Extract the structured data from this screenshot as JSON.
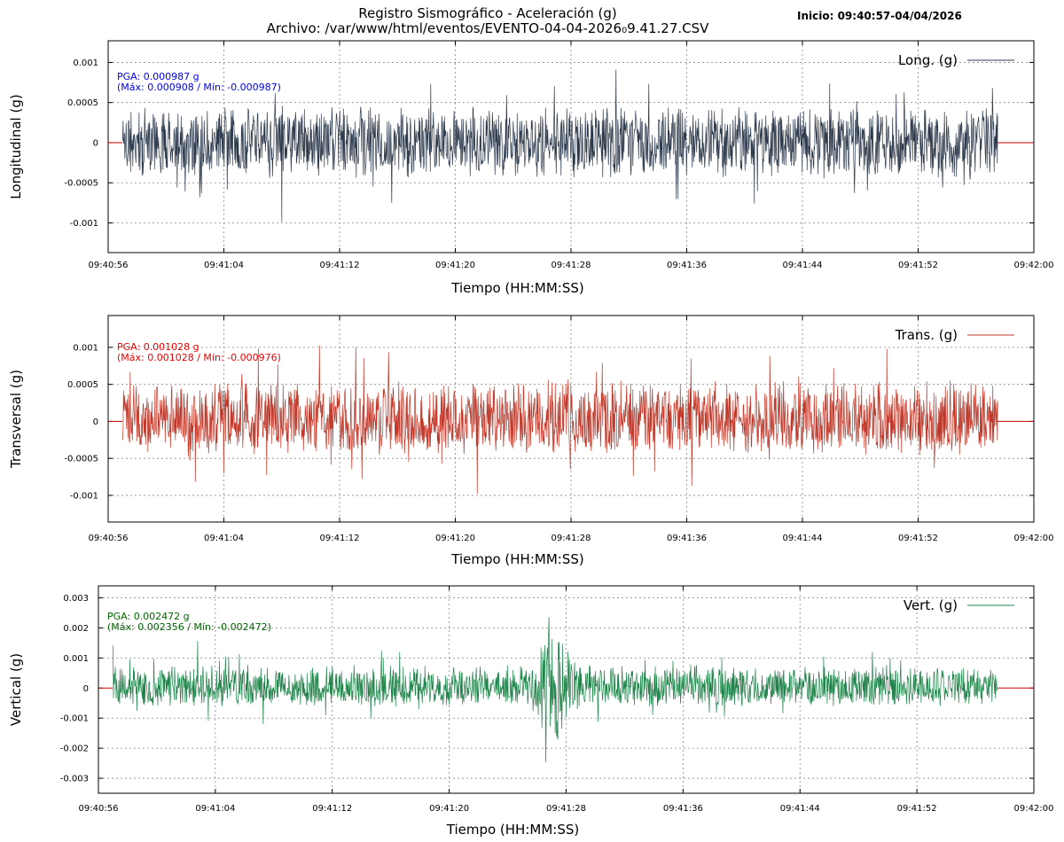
{
  "title": {
    "line1": "Registro Sismográfico - Aceleración (g)",
    "line2": "Archivo: /var/www/html/eventos/EVENTO-04-04-2026₀9.41.27.CSV",
    "inicio": "Inicio: 09:40:57-04/04/2026"
  },
  "colors": {
    "long": "#2d3a4c",
    "trans": "#c0392b",
    "vert": "#1e8449",
    "zero_line": "#cc0000",
    "grid": "#888888",
    "ann_long": "#0000ee",
    "ann_trans": "#ee0000",
    "ann_vert": "#006400"
  },
  "chart_data": [
    {
      "type": "line",
      "key": "long",
      "ylabel": "Longitudinal (g)",
      "xlabel": "Tiempo (HH:MM:SS)",
      "legend": "Long. (g)",
      "legend_position": "top-right",
      "grid": true,
      "x_range": [
        "09:40:56",
        "09:42:00"
      ],
      "x_ticks": [
        "09:40:56",
        "09:41:04",
        "09:41:12",
        "09:41:20",
        "09:41:28",
        "09:41:36",
        "09:41:44",
        "09:41:52",
        "09:42:00"
      ],
      "data_time_range": [
        "09:40:57",
        "09:41:57.5"
      ],
      "ylim": [
        -0.00137,
        0.00127
      ],
      "y_ticks": [
        -0.001,
        -0.0005,
        0,
        0.0005,
        0.001
      ],
      "y_tick_labels": [
        "-0.001",
        "-0.0005",
        "0",
        "0.0005",
        "0.001"
      ],
      "pga_text": "PGA: 0.000987 g",
      "maxmin_text": "(Máx: 0.000908 / Mín: -0.000987)",
      "max": 0.000908,
      "min": -0.000987,
      "typical_envelope": 0.00028,
      "seed": 11,
      "events": []
    },
    {
      "type": "line",
      "key": "trans",
      "ylabel": "Transversal (g)",
      "xlabel": "Tiempo (HH:MM:SS)",
      "legend": "Trans. (g)",
      "legend_position": "top-right",
      "grid": true,
      "x_range": [
        "09:40:56",
        "09:42:00"
      ],
      "x_ticks": [
        "09:40:56",
        "09:41:04",
        "09:41:12",
        "09:41:20",
        "09:41:28",
        "09:41:36",
        "09:41:44",
        "09:41:52",
        "09:42:00"
      ],
      "data_time_range": [
        "09:40:57",
        "09:41:57.5"
      ],
      "ylim": [
        -0.00136,
        0.00143
      ],
      "y_ticks": [
        -0.001,
        -0.0005,
        0,
        0.0005,
        0.001
      ],
      "y_tick_labels": [
        "-0.001",
        "-0.0005",
        "0",
        "0.0005",
        "0.001"
      ],
      "pga_text": "PGA: 0.001028 g",
      "maxmin_text": "(Máx: 0.001028 / Mín: -0.000976)",
      "max": 0.001028,
      "min": -0.000976,
      "typical_envelope": 0.0003,
      "seed": 23,
      "events": [
        {
          "time": "09:41:27.2",
          "amp": 1.25,
          "width_s": 0.6
        }
      ]
    },
    {
      "type": "line",
      "key": "vert",
      "ylabel": "Vertical (g)",
      "xlabel": "Tiempo (HH:MM:SS)",
      "legend": "Vert. (g)",
      "legend_position": "top-right",
      "grid": true,
      "x_range": [
        "09:40:56",
        "09:42:00"
      ],
      "x_ticks": [
        "09:40:56",
        "09:41:04",
        "09:41:12",
        "09:41:20",
        "09:41:28",
        "09:41:36",
        "09:41:44",
        "09:41:52",
        "09:42:00"
      ],
      "data_time_range": [
        "09:40:57",
        "09:41:57.5"
      ],
      "ylim": [
        -0.0035,
        0.0034
      ],
      "y_ticks": [
        -0.003,
        -0.002,
        -0.001,
        0,
        0.001,
        0.002,
        0.003
      ],
      "y_tick_labels": [
        "-0.003",
        "-0.002",
        "-0.001",
        "0",
        "0.001",
        "0.002",
        "0.003"
      ],
      "pga_text": "PGA: 0.002472 g",
      "maxmin_text": "(Máx: 0.002356 / Mín: -0.002472)",
      "max": 0.002356,
      "min": -0.002472,
      "typical_envelope": 0.0005,
      "seed": 37,
      "events": [
        {
          "time": "09:41:27.1",
          "amp": 3.6,
          "width_s": 0.9
        }
      ]
    }
  ]
}
